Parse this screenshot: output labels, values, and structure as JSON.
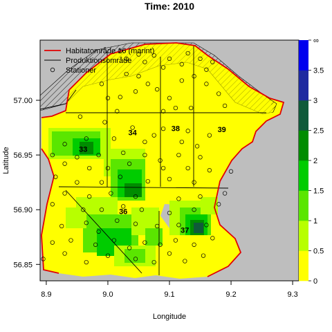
{
  "chart_data": {
    "type": "heatmap",
    "title": "Time: 2010",
    "xlabel": "Longitude",
    "ylabel": "Latitude",
    "xlim": [
      8.89,
      9.31
    ],
    "ylim": [
      56.835,
      57.055
    ],
    "xticks": [
      "8.9",
      "9.0",
      "9.1",
      "9.2",
      "9.3"
    ],
    "yticks": [
      "56.85",
      "56.90",
      "56.95",
      "57.00"
    ],
    "legend": {
      "position": "top-left",
      "entries": [
        {
          "label": "Habitatområde 16 (marint)",
          "style": "line",
          "color": "#e00000"
        },
        {
          "label": "Produktionsområde",
          "style": "line",
          "color": "#000000"
        },
        {
          "label": "Stationer",
          "style": "circle",
          "color": "#000000"
        }
      ]
    },
    "colorbar": {
      "ticks": [
        "0",
        "0.5",
        "1",
        "1.5",
        "2",
        "2.5",
        "3",
        "3.5",
        "∞"
      ],
      "colors": [
        "#ffff00",
        "#b8ff00",
        "#5ae600",
        "#00cc00",
        "#008c00",
        "#0f5a3a",
        "#1e2aa0",
        "#0000ee"
      ]
    },
    "areas": [
      {
        "id": "33",
        "lon": 8.96,
        "lat": 56.953
      },
      {
        "id": "34",
        "lon": 9.04,
        "lat": 56.968
      },
      {
        "id": "38",
        "lon": 9.11,
        "lat": 56.972
      },
      {
        "id": "39",
        "lon": 9.185,
        "lat": 56.971
      },
      {
        "id": "36",
        "lon": 9.025,
        "lat": 56.896
      },
      {
        "id": "37",
        "lon": 9.125,
        "lat": 56.879
      }
    ],
    "stations": [
      [
        9.02,
        57.045
      ],
      [
        9.03,
        57.038
      ],
      [
        9.05,
        57.042
      ],
      [
        9.06,
        57.035
      ],
      [
        9.075,
        57.041
      ],
      [
        9.09,
        57.03
      ],
      [
        9.1,
        57.038
      ],
      [
        9.12,
        57.033
      ],
      [
        9.13,
        57.043
      ],
      [
        9.15,
        57.038
      ],
      [
        9.16,
        57.028
      ],
      [
        9.17,
        57.035
      ],
      [
        9.14,
        57.022
      ],
      [
        9.16,
        57.015
      ],
      [
        9.18,
        57.006
      ],
      [
        9.19,
        56.995
      ],
      [
        9.03,
        57.024
      ],
      [
        9.05,
        57.022
      ],
      [
        9.065,
        57.015
      ],
      [
        9.08,
        57.01
      ],
      [
        9.1,
        57.002
      ],
      [
        9.12,
        57.018
      ],
      [
        8.99,
        57.015
      ],
      [
        9.0,
        57.002
      ],
      [
        9.02,
        57.003
      ],
      [
        9.045,
        57.008
      ],
      [
        9.09,
        56.99
      ],
      [
        9.11,
        56.993
      ],
      [
        9.135,
        56.993
      ],
      [
        9.015,
        56.99
      ],
      [
        8.955,
        56.985
      ],
      [
        8.995,
        56.98
      ],
      [
        9.04,
        56.975
      ],
      [
        9.075,
        56.968
      ],
      [
        9.09,
        56.974
      ],
      [
        9.13,
        56.972
      ],
      [
        9.165,
        56.968
      ],
      [
        8.93,
        56.96
      ],
      [
        8.965,
        56.965
      ],
      [
        9.01,
        56.965
      ],
      [
        9.06,
        56.962
      ],
      [
        9.12,
        56.962
      ],
      [
        9.145,
        56.958
      ],
      [
        8.91,
        56.95
      ],
      [
        8.95,
        56.948
      ],
      [
        8.985,
        56.95
      ],
      [
        9.025,
        56.952
      ],
      [
        9.06,
        56.95
      ],
      [
        9.085,
        56.945
      ],
      [
        9.115,
        56.95
      ],
      [
        9.15,
        56.948
      ],
      [
        8.93,
        56.942
      ],
      [
        8.97,
        56.938
      ],
      [
        9.0,
        56.938
      ],
      [
        9.035,
        56.942
      ],
      [
        9.09,
        56.938
      ],
      [
        9.13,
        56.938
      ],
      [
        9.165,
        56.936
      ],
      [
        8.915,
        56.93
      ],
      [
        8.95,
        56.925
      ],
      [
        8.99,
        56.925
      ],
      [
        9.02,
        56.93
      ],
      [
        9.065,
        56.926
      ],
      [
        9.1,
        56.928
      ],
      [
        9.14,
        56.925
      ],
      [
        9.2,
        56.935
      ],
      [
        8.93,
        56.915
      ],
      [
        8.97,
        56.912
      ],
      [
        9.005,
        56.915
      ],
      [
        9.045,
        56.912
      ],
      [
        9.115,
        56.91
      ],
      [
        9.15,
        56.912
      ],
      [
        9.19,
        56.915
      ],
      [
        8.91,
        56.905
      ],
      [
        8.96,
        56.9
      ],
      [
        8.99,
        56.9
      ],
      [
        9.025,
        56.903
      ],
      [
        9.055,
        56.9
      ],
      [
        9.1,
        56.897
      ],
      [
        9.14,
        56.9
      ],
      [
        9.18,
        56.905
      ],
      [
        8.925,
        56.885
      ],
      [
        8.965,
        56.888
      ],
      [
        8.985,
        56.88
      ],
      [
        9.015,
        56.89
      ],
      [
        9.045,
        56.887
      ],
      [
        9.08,
        56.885
      ],
      [
        9.115,
        56.886
      ],
      [
        9.16,
        56.886
      ],
      [
        8.91,
        56.87
      ],
      [
        8.94,
        56.872
      ],
      [
        8.98,
        56.868
      ],
      [
        9.01,
        56.872
      ],
      [
        9.035,
        56.865
      ],
      [
        9.06,
        56.87
      ],
      [
        9.085,
        56.868
      ],
      [
        9.11,
        56.872
      ],
      [
        9.14,
        56.868
      ],
      [
        9.17,
        56.874
      ],
      [
        8.895,
        56.855
      ],
      [
        8.93,
        56.86
      ],
      [
        8.965,
        56.852
      ],
      [
        9.0,
        56.858
      ],
      [
        9.045,
        56.855
      ],
      [
        9.075,
        56.852
      ],
      [
        9.1,
        56.86
      ],
      [
        9.125,
        56.853
      ],
      [
        9.155,
        56.858
      ]
    ]
  }
}
